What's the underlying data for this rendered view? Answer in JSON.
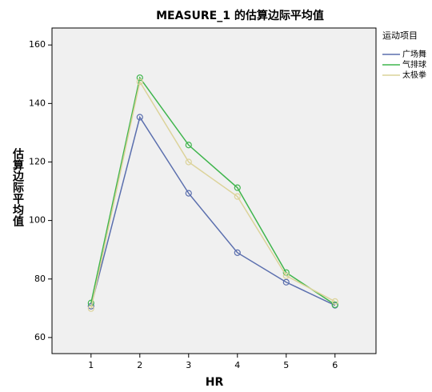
{
  "chart_data": {
    "type": "line",
    "title": "MEASURE_1 的估算边际平均值",
    "x_label": "HR",
    "y_label": "估算边际平均值",
    "legend_title": "运动项目",
    "x": [
      1,
      2,
      3,
      4,
      5,
      6
    ],
    "xlim": [
      0.2,
      6.84
    ],
    "xticks": [
      1,
      2,
      3,
      4,
      5,
      6
    ],
    "ylim": [
      54.5,
      165.8
    ],
    "yticks": [
      60,
      80,
      100,
      120,
      140,
      160
    ],
    "grid": false,
    "legend_position": "right",
    "marker": "open-circle",
    "series": [
      {
        "name": "广场舞",
        "color": "#5b6fae",
        "values": [
          70.7,
          135.3,
          109.3,
          89.0,
          78.9,
          71.0
        ]
      },
      {
        "name": "气排球",
        "color": "#3fb54d",
        "values": [
          71.8,
          148.8,
          125.8,
          111.2,
          82.2,
          71.2
        ]
      },
      {
        "name": "太极拳",
        "color": "#dcd39a",
        "values": [
          69.9,
          147.4,
          120.0,
          108.2,
          81.1,
          72.3
        ]
      }
    ]
  }
}
